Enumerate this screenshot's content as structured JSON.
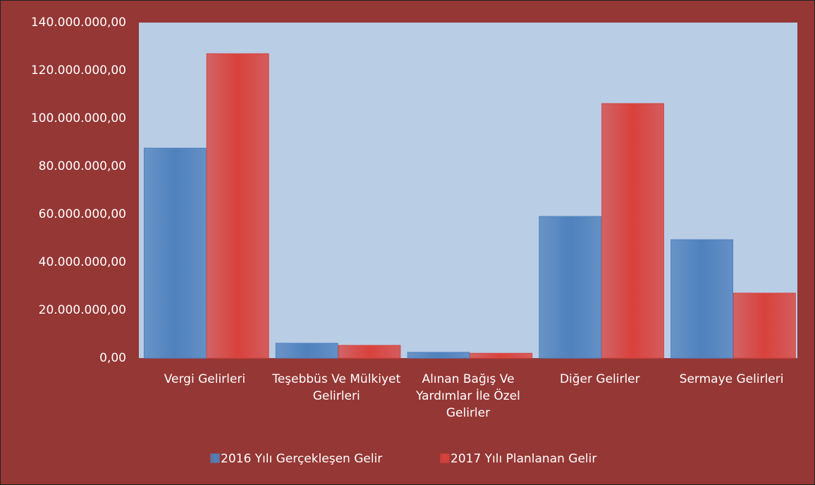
{
  "chart_data": {
    "type": "bar",
    "categories": [
      "Vergi Gelirleri",
      "Teşebbüs Ve Mülkiyet Gelirleri",
      "Alınan Bağış Ve Yardımlar İle Özel Gelirler",
      "Diğer Gelirler",
      "Sermaye Gelirleri"
    ],
    "series": [
      {
        "name": "2016 Yılı Gerçekleşen Gelir",
        "color": "#4f81bd",
        "values": [
          87600000,
          6200000,
          2400000,
          59100000,
          49400000
        ]
      },
      {
        "name": "2017 Yılı Planlanan Gelir",
        "color": "#d9413c",
        "values": [
          127000000,
          5300000,
          2000000,
          106200000,
          27100000
        ]
      }
    ],
    "ylim": [
      0,
      140000000
    ],
    "yticks": [
      {
        "value": 0,
        "label": "0,00"
      },
      {
        "value": 20000000,
        "label": "20.000.000,00"
      },
      {
        "value": 40000000,
        "label": "40.000.000,00"
      },
      {
        "value": 60000000,
        "label": "60.000.000,00"
      },
      {
        "value": 80000000,
        "label": "80.000.000,00"
      },
      {
        "value": 100000000,
        "label": "100.000.000,00"
      },
      {
        "value": 120000000,
        "label": "120.000.000,00"
      },
      {
        "value": 140000000,
        "label": "140.000.000,00"
      }
    ],
    "grid": false,
    "legend": "bottom"
  }
}
